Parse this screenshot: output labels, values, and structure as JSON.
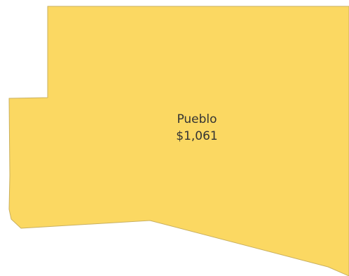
{
  "map": {
    "region": {
      "name": "Pueblo",
      "value": "$1,061",
      "fill_color": "#fbd862"
    }
  }
}
